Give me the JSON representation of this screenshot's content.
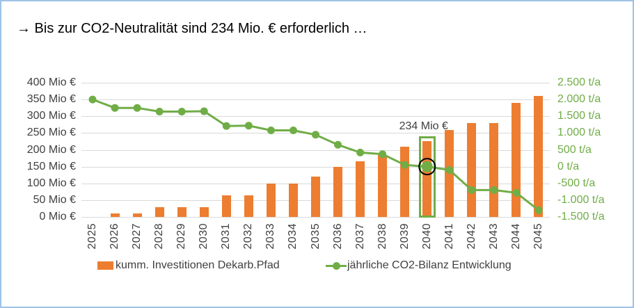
{
  "window": {
    "border_color": "#9DC3E6",
    "background": "#FFFFFF"
  },
  "title": "→ Bis zur CO2-Neutralität sind 234 Mio. € erforderlich …",
  "chart_data": {
    "type": "bar",
    "subtype": "combo bar+line, dual y-axis",
    "categories": [
      "2025",
      "2026",
      "2027",
      "2028",
      "2029",
      "2030",
      "2031",
      "2032",
      "2033",
      "2034",
      "2035",
      "2036",
      "2037",
      "2038",
      "2039",
      "2040",
      "2041",
      "2042",
      "2043",
      "2044",
      "2045"
    ],
    "series": [
      {
        "name": "kumm. Investitionen Dekarb.Pfad",
        "type": "bar",
        "axis": "left",
        "unit": "Mio €",
        "color": "#ED7D31",
        "values": [
          0,
          10,
          10,
          30,
          30,
          30,
          65,
          65,
          100,
          100,
          120,
          150,
          165,
          185,
          210,
          234,
          260,
          280,
          280,
          340,
          360
        ]
      },
      {
        "name": "jährliche CO2-Bilanz Entwicklung",
        "type": "line",
        "axis": "right",
        "unit": "t/a",
        "color": "#70AD47",
        "values": [
          2000,
          1750,
          1750,
          1640,
          1640,
          1650,
          1210,
          1220,
          1080,
          1080,
          950,
          650,
          420,
          370,
          50,
          0,
          -100,
          -700,
          -700,
          -780,
          -1300
        ]
      }
    ],
    "left_axis": {
      "min": 0,
      "max": 400,
      "step": 50,
      "tick_labels": [
        "400 Mio €",
        "350 Mio €",
        "300 Mio €",
        "250 Mio €",
        "200 Mio €",
        "150 Mio €",
        "100 Mio €",
        "50 Mio €",
        "0 Mio €"
      ]
    },
    "right_axis": {
      "min": -1500,
      "max": 2500,
      "step": 500,
      "tick_labels": [
        "2.500 t/a",
        "2.000 t/a",
        "1.500 t/a",
        "1.000 t/a",
        "500 t/a",
        "0 t/a",
        "-500 t/a",
        "-1.000 t/a",
        "-1.500 t/a"
      ]
    },
    "annotation": {
      "text": "234 Mio €",
      "category": "2040"
    },
    "highlight": {
      "category": "2040",
      "value": 234,
      "box_color": "#70AD47",
      "ring_color": "#000000"
    },
    "grid": true,
    "gridline_color": "#D9D9D9",
    "axis_text_color": "#404040",
    "legend_position": "bottom"
  }
}
